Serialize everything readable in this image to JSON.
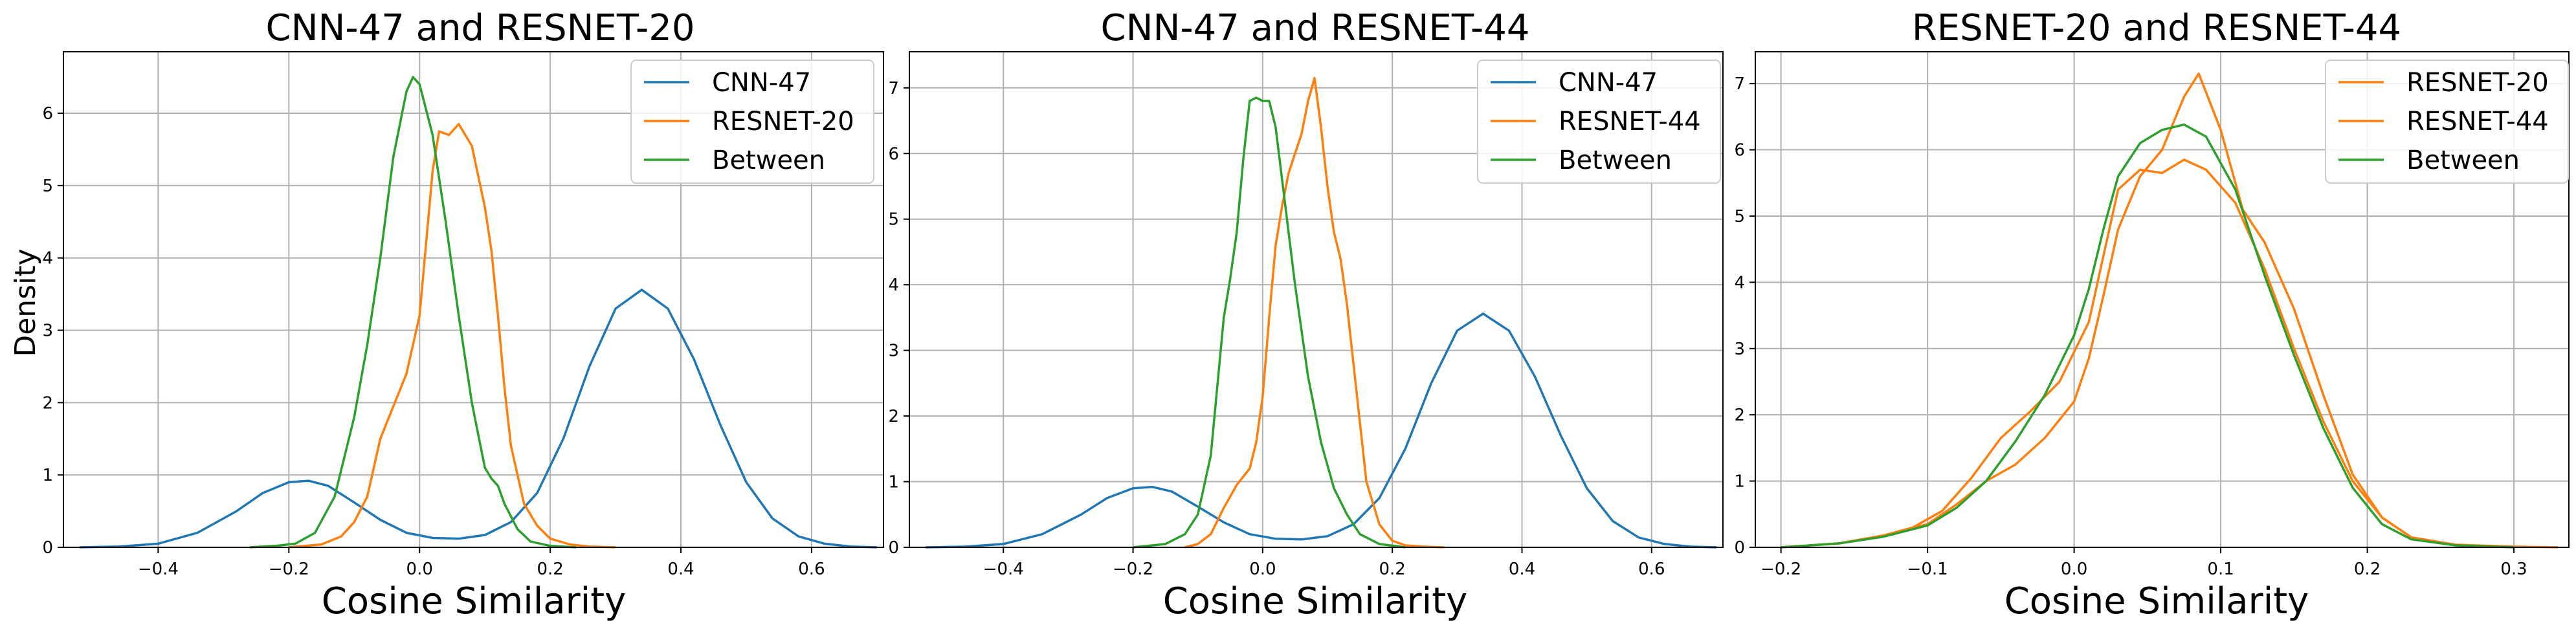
{
  "colors": {
    "CNN-47": "#1f77b4",
    "RESNET-20": "#ff7f0e",
    "RESNET-44": "#ff7f0e",
    "Between": "#2ca02c"
  },
  "chart_data": [
    {
      "type": "line",
      "title": "CNN-47 and RESNET-20",
      "xlabel": "Cosine Similarity",
      "ylabel": "Density",
      "xlim": [
        -0.545,
        0.71
      ],
      "ylim": [
        0,
        6.85
      ],
      "xticks": [
        -0.4,
        -0.2,
        0.0,
        0.2,
        0.4,
        0.6
      ],
      "yticks": [
        0,
        1,
        2,
        3,
        4,
        5,
        6
      ],
      "grid": true,
      "legend": "top-right",
      "series": [
        {
          "name": "CNN-47",
          "x": [
            -0.52,
            -0.46,
            -0.4,
            -0.34,
            -0.28,
            -0.24,
            -0.2,
            -0.17,
            -0.14,
            -0.1,
            -0.06,
            -0.02,
            0.02,
            0.06,
            0.1,
            0.14,
            0.18,
            0.22,
            0.26,
            0.3,
            0.34,
            0.38,
            0.42,
            0.46,
            0.5,
            0.54,
            0.58,
            0.62,
            0.66,
            0.7
          ],
          "y": [
            0.0,
            0.01,
            0.05,
            0.2,
            0.5,
            0.75,
            0.9,
            0.92,
            0.85,
            0.62,
            0.38,
            0.2,
            0.13,
            0.12,
            0.17,
            0.35,
            0.75,
            1.5,
            2.5,
            3.3,
            3.56,
            3.3,
            2.6,
            1.7,
            0.9,
            0.4,
            0.15,
            0.05,
            0.01,
            0.0
          ]
        },
        {
          "name": "RESNET-20",
          "x": [
            -0.2,
            -0.15,
            -0.12,
            -0.1,
            -0.08,
            -0.06,
            -0.04,
            -0.02,
            0.0,
            0.01,
            0.02,
            0.03,
            0.045,
            0.06,
            0.08,
            0.1,
            0.11,
            0.12,
            0.13,
            0.14,
            0.16,
            0.18,
            0.2,
            0.23,
            0.26,
            0.3
          ],
          "y": [
            0.0,
            0.04,
            0.15,
            0.35,
            0.7,
            1.5,
            1.95,
            2.4,
            3.2,
            4.2,
            5.2,
            5.75,
            5.7,
            5.85,
            5.55,
            4.7,
            4.1,
            3.2,
            2.2,
            1.4,
            0.6,
            0.3,
            0.12,
            0.04,
            0.01,
            0.0
          ]
        },
        {
          "name": "Between",
          "x": [
            -0.26,
            -0.22,
            -0.19,
            -0.16,
            -0.13,
            -0.1,
            -0.08,
            -0.06,
            -0.04,
            -0.02,
            -0.01,
            0.0,
            0.02,
            0.04,
            0.06,
            0.08,
            0.1,
            0.11,
            0.12,
            0.13,
            0.15,
            0.17,
            0.2,
            0.24
          ],
          "y": [
            0.0,
            0.02,
            0.05,
            0.2,
            0.7,
            1.8,
            2.8,
            4.0,
            5.4,
            6.3,
            6.5,
            6.4,
            5.7,
            4.5,
            3.2,
            2.0,
            1.1,
            0.95,
            0.85,
            0.6,
            0.25,
            0.08,
            0.02,
            0.0
          ]
        }
      ]
    },
    {
      "type": "line",
      "title": "CNN-47 and RESNET-44",
      "xlabel": "Cosine Similarity",
      "ylabel": "",
      "xlim": [
        -0.545,
        0.71
      ],
      "ylim": [
        0,
        7.55
      ],
      "xticks": [
        -0.4,
        -0.2,
        0.0,
        0.2,
        0.4,
        0.6
      ],
      "yticks": [
        0,
        1,
        2,
        3,
        4,
        5,
        6,
        7
      ],
      "grid": true,
      "legend": "top-right",
      "series": [
        {
          "name": "CNN-47",
          "x": [
            -0.52,
            -0.46,
            -0.4,
            -0.34,
            -0.28,
            -0.24,
            -0.2,
            -0.17,
            -0.14,
            -0.1,
            -0.06,
            -0.02,
            0.02,
            0.06,
            0.1,
            0.14,
            0.18,
            0.22,
            0.26,
            0.3,
            0.34,
            0.38,
            0.42,
            0.46,
            0.5,
            0.54,
            0.58,
            0.62,
            0.66,
            0.7
          ],
          "y": [
            0.0,
            0.01,
            0.05,
            0.2,
            0.5,
            0.75,
            0.9,
            0.92,
            0.85,
            0.62,
            0.38,
            0.2,
            0.13,
            0.12,
            0.17,
            0.35,
            0.75,
            1.5,
            2.5,
            3.3,
            3.56,
            3.3,
            2.6,
            1.7,
            0.9,
            0.4,
            0.15,
            0.05,
            0.01,
            0.0
          ]
        },
        {
          "name": "RESNET-44",
          "x": [
            -0.12,
            -0.1,
            -0.08,
            -0.06,
            -0.04,
            -0.02,
            -0.01,
            0.0,
            0.01,
            0.02,
            0.03,
            0.04,
            0.05,
            0.06,
            0.07,
            0.08,
            0.09,
            0.1,
            0.11,
            0.12,
            0.13,
            0.14,
            0.15,
            0.16,
            0.18,
            0.2,
            0.22,
            0.25,
            0.28
          ],
          "y": [
            0.0,
            0.05,
            0.2,
            0.6,
            0.95,
            1.2,
            1.6,
            2.3,
            3.5,
            4.6,
            5.2,
            5.7,
            6.0,
            6.3,
            6.8,
            7.15,
            6.4,
            5.5,
            4.8,
            4.4,
            3.7,
            2.8,
            1.9,
            1.0,
            0.35,
            0.1,
            0.03,
            0.01,
            0.0
          ]
        },
        {
          "name": "Between",
          "x": [
            -0.2,
            -0.15,
            -0.12,
            -0.1,
            -0.08,
            -0.06,
            -0.05,
            -0.04,
            -0.03,
            -0.02,
            -0.01,
            0.0,
            0.01,
            0.02,
            0.03,
            0.05,
            0.07,
            0.09,
            0.11,
            0.13,
            0.15,
            0.18,
            0.22
          ],
          "y": [
            0.0,
            0.05,
            0.2,
            0.5,
            1.4,
            3.5,
            4.1,
            4.8,
            5.9,
            6.8,
            6.85,
            6.8,
            6.8,
            6.4,
            5.6,
            4.0,
            2.6,
            1.6,
            0.9,
            0.5,
            0.2,
            0.05,
            0.0
          ]
        }
      ]
    },
    {
      "type": "line",
      "title": "RESNET-20 and RESNET-44",
      "xlabel": "Cosine Similarity",
      "ylabel": "",
      "xlim": [
        -0.2175,
        0.3375
      ],
      "ylim": [
        0,
        7.48
      ],
      "xticks": [
        -0.2,
        -0.1,
        0.0,
        0.1,
        0.2,
        0.3
      ],
      "yticks": [
        0,
        1,
        2,
        3,
        4,
        5,
        6,
        7
      ],
      "grid": true,
      "legend": "top-right",
      "series": [
        {
          "name": "RESNET-20",
          "x": [
            -0.2,
            -0.16,
            -0.13,
            -0.11,
            -0.09,
            -0.07,
            -0.05,
            -0.03,
            -0.01,
            0.01,
            0.02,
            0.03,
            0.045,
            0.06,
            0.075,
            0.09,
            0.11,
            0.13,
            0.15,
            0.17,
            0.19,
            0.21,
            0.23,
            0.26,
            0.3
          ],
          "y": [
            0.0,
            0.06,
            0.18,
            0.3,
            0.55,
            1.05,
            1.65,
            2.05,
            2.5,
            3.4,
            4.4,
            5.4,
            5.7,
            5.65,
            5.85,
            5.7,
            5.2,
            4.2,
            3.0,
            1.9,
            1.0,
            0.45,
            0.15,
            0.03,
            0.0
          ]
        },
        {
          "name": "RESNET-44",
          "x": [
            -0.2,
            -0.16,
            -0.13,
            -0.1,
            -0.08,
            -0.06,
            -0.04,
            -0.02,
            0.0,
            0.01,
            0.02,
            0.03,
            0.045,
            0.06,
            0.075,
            0.085,
            0.1,
            0.115,
            0.13,
            0.15,
            0.17,
            0.19,
            0.21,
            0.23,
            0.26,
            0.3,
            0.33
          ],
          "y": [
            0.0,
            0.06,
            0.18,
            0.35,
            0.65,
            1.0,
            1.25,
            1.65,
            2.2,
            2.85,
            3.8,
            4.8,
            5.6,
            6.0,
            6.8,
            7.15,
            6.3,
            5.1,
            4.6,
            3.6,
            2.3,
            1.1,
            0.45,
            0.15,
            0.04,
            0.01,
            0.0
          ]
        },
        {
          "name": "Between",
          "x": [
            -0.2,
            -0.16,
            -0.13,
            -0.1,
            -0.08,
            -0.06,
            -0.04,
            -0.02,
            0.0,
            0.01,
            0.02,
            0.03,
            0.045,
            0.06,
            0.075,
            0.09,
            0.11,
            0.13,
            0.15,
            0.17,
            0.19,
            0.21,
            0.23,
            0.26,
            0.3
          ],
          "y": [
            0.0,
            0.06,
            0.16,
            0.33,
            0.6,
            1.0,
            1.6,
            2.3,
            3.2,
            3.9,
            4.8,
            5.6,
            6.1,
            6.3,
            6.38,
            6.2,
            5.4,
            4.1,
            2.9,
            1.8,
            0.9,
            0.35,
            0.12,
            0.03,
            0.0
          ]
        }
      ]
    }
  ]
}
